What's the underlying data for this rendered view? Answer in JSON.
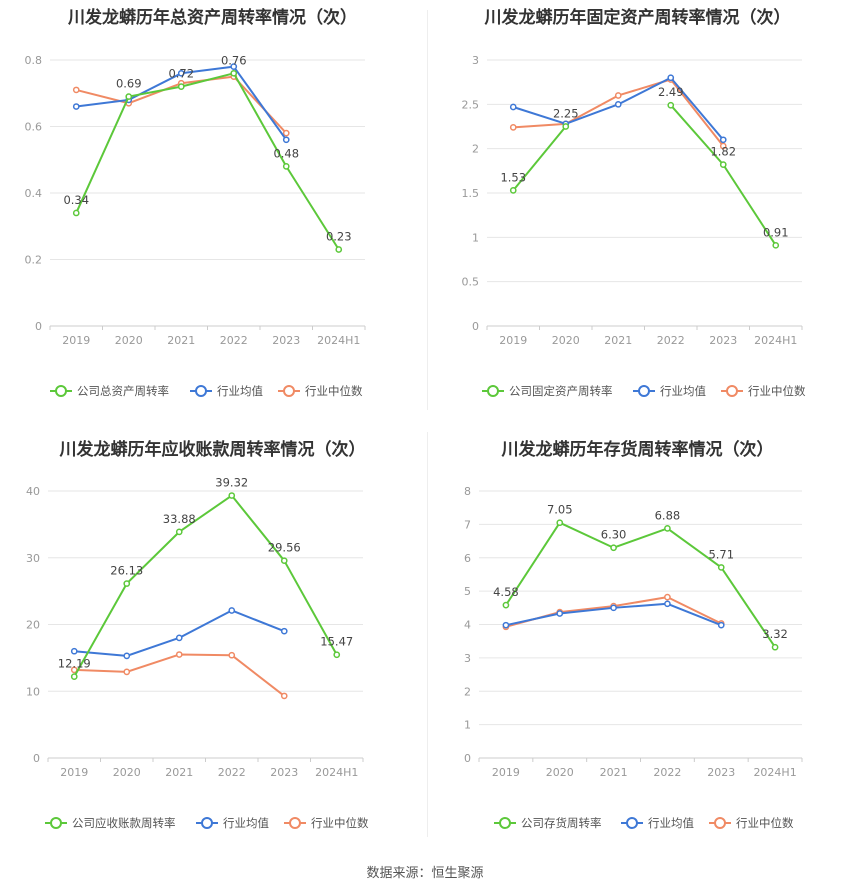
{
  "colors": {
    "company": "#5cc83a",
    "avg": "#3e78d6",
    "median": "#f08a64",
    "grid": "#e6e6e6",
    "axis": "#999999",
    "label": "#444444"
  },
  "source": "数据来源：恒生聚源",
  "chart_data": [
    {
      "type": "line",
      "title": "川发龙蟒历年总资产周转率情况（次）",
      "categories": [
        "2019",
        "2020",
        "2021",
        "2022",
        "2023",
        "2024H1"
      ],
      "ylim": [
        0,
        0.8
      ],
      "yticks": [
        "0",
        "0.2",
        "0.4",
        "0.6",
        "0.8"
      ],
      "series": [
        {
          "name": "公司总资产周转率",
          "key": "company",
          "values": [
            0.34,
            0.69,
            0.72,
            0.76,
            0.48,
            0.23
          ],
          "labels": [
            "0.34",
            "0.69",
            "0.72",
            "0.76",
            "0.48",
            "0.23"
          ]
        },
        {
          "name": "行业均值",
          "key": "avg",
          "values": [
            0.66,
            0.68,
            0.76,
            0.78,
            0.56,
            null
          ]
        },
        {
          "name": "行业中位数",
          "key": "median",
          "values": [
            0.71,
            0.67,
            0.73,
            0.75,
            0.58,
            null
          ]
        }
      ]
    },
    {
      "type": "line",
      "title": "川发龙蟒历年固定资产周转率情况（次）",
      "categories": [
        "2019",
        "2020",
        "2021",
        "2022",
        "2023",
        "2024H1"
      ],
      "ylim": [
        0,
        3
      ],
      "yticks": [
        "0",
        "0.5",
        "1",
        "1.5",
        "2",
        "2.5",
        "3"
      ],
      "series": [
        {
          "name": "公司固定资产周转率",
          "key": "company",
          "values": [
            1.53,
            2.25,
            null,
            2.49,
            1.82,
            0.91
          ],
          "labels": [
            "1.53",
            "2.25",
            "",
            "2.49",
            "1.82",
            "0.91"
          ]
        },
        {
          "name": "行业均值",
          "key": "avg",
          "values": [
            2.47,
            2.28,
            2.5,
            2.8,
            2.1,
            null
          ]
        },
        {
          "name": "行业中位数",
          "key": "median",
          "values": [
            2.24,
            2.28,
            2.6,
            2.78,
            2.03,
            null
          ]
        }
      ]
    },
    {
      "type": "line",
      "title": "川发龙蟒历年应收账款周转率情况（次）",
      "categories": [
        "2019",
        "2020",
        "2021",
        "2022",
        "2023",
        "2024H1"
      ],
      "ylim": [
        0,
        40
      ],
      "yticks": [
        "0",
        "10",
        "20",
        "30",
        "40"
      ],
      "series": [
        {
          "name": "公司应收账款周转率",
          "key": "company",
          "values": [
            12.19,
            26.13,
            33.88,
            39.32,
            29.56,
            15.47
          ],
          "labels": [
            "12.19",
            "26.13",
            "33.88",
            "39.32",
            "29.56",
            "15.47"
          ]
        },
        {
          "name": "行业均值",
          "key": "avg",
          "values": [
            16.0,
            15.3,
            18.0,
            22.1,
            19.0,
            null
          ]
        },
        {
          "name": "行业中位数",
          "key": "median",
          "values": [
            13.2,
            12.9,
            15.5,
            15.4,
            9.3,
            null
          ]
        }
      ]
    },
    {
      "type": "line",
      "title": "川发龙蟒历年存货周转率情况（次）",
      "categories": [
        "2019",
        "2020",
        "2021",
        "2022",
        "2023",
        "2024H1"
      ],
      "ylim": [
        0,
        8
      ],
      "yticks": [
        "0",
        "1",
        "2",
        "3",
        "4",
        "5",
        "6",
        "7",
        "8"
      ],
      "series": [
        {
          "name": "公司存货周转率",
          "key": "company",
          "values": [
            4.58,
            7.05,
            6.3,
            6.88,
            5.71,
            3.32
          ],
          "labels": [
            "4.58",
            "7.05",
            "6.30",
            "6.88",
            "5.71",
            "3.32"
          ]
        },
        {
          "name": "行业均值",
          "key": "avg",
          "values": [
            3.98,
            4.33,
            4.5,
            4.62,
            3.98,
            null
          ]
        },
        {
          "name": "行业中位数",
          "key": "median",
          "values": [
            3.93,
            4.37,
            4.55,
            4.82,
            4.03,
            null
          ]
        }
      ]
    }
  ]
}
